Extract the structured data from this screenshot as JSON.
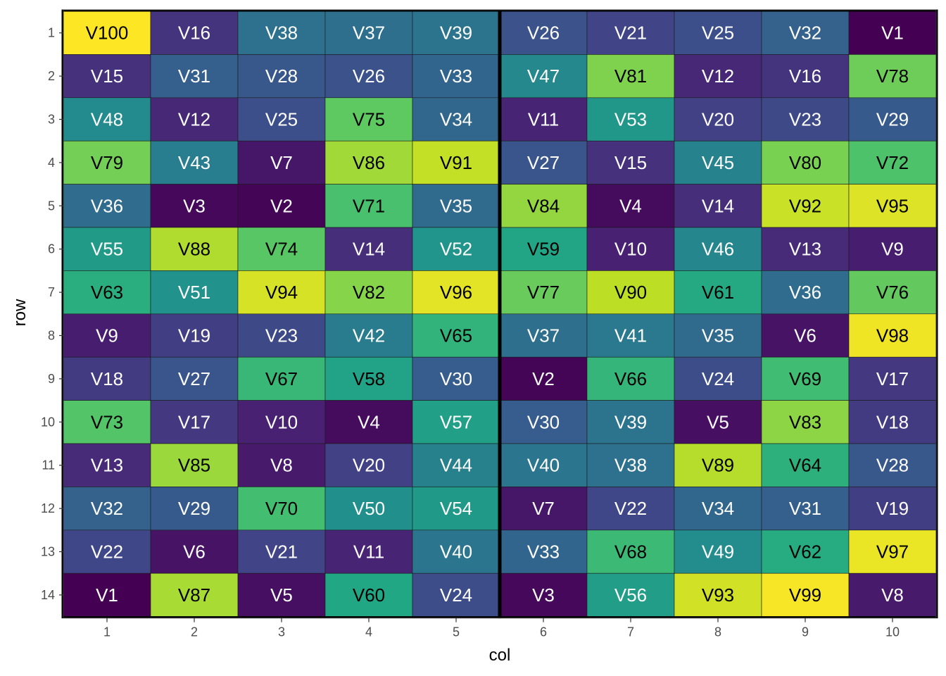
{
  "chart_data": {
    "type": "heatmap",
    "xlabel": "col",
    "ylabel": "row",
    "x_ticks": [
      "1",
      "2",
      "3",
      "4",
      "5",
      "6",
      "7",
      "8",
      "9",
      "10"
    ],
    "y_ticks": [
      "1",
      "2",
      "3",
      "4",
      "5",
      "6",
      "7",
      "8",
      "9",
      "10",
      "11",
      "12",
      "13",
      "14"
    ],
    "panels": [
      [
        1,
        5
      ],
      [
        6,
        10
      ]
    ],
    "colormap": "viridis",
    "value_range": [
      1,
      100
    ],
    "grid": false,
    "cells": [
      [
        "V100",
        "V16",
        "V38",
        "V37",
        "V39",
        "V26",
        "V21",
        "V25",
        "V32",
        "V1"
      ],
      [
        "V15",
        "V31",
        "V28",
        "V26",
        "V33",
        "V47",
        "V81",
        "V12",
        "V16",
        "V78"
      ],
      [
        "V48",
        "V12",
        "V25",
        "V75",
        "V34",
        "V11",
        "V53",
        "V20",
        "V23",
        "V29"
      ],
      [
        "V79",
        "V43",
        "V7",
        "V86",
        "V91",
        "V27",
        "V15",
        "V45",
        "V80",
        "V72"
      ],
      [
        "V36",
        "V3",
        "V2",
        "V71",
        "V35",
        "V84",
        "V4",
        "V14",
        "V92",
        "V95"
      ],
      [
        "V55",
        "V88",
        "V74",
        "V14",
        "V52",
        "V59",
        "V10",
        "V46",
        "V13",
        "V9"
      ],
      [
        "V63",
        "V51",
        "V94",
        "V82",
        "V96",
        "V77",
        "V90",
        "V61",
        "V36",
        "V76"
      ],
      [
        "V9",
        "V19",
        "V23",
        "V42",
        "V65",
        "V37",
        "V41",
        "V35",
        "V6",
        "V98"
      ],
      [
        "V18",
        "V27",
        "V67",
        "V58",
        "V30",
        "V2",
        "V66",
        "V24",
        "V69",
        "V17"
      ],
      [
        "V73",
        "V17",
        "V10",
        "V4",
        "V57",
        "V30",
        "V39",
        "V5",
        "V83",
        "V18"
      ],
      [
        "V13",
        "V85",
        "V8",
        "V20",
        "V44",
        "V40",
        "V38",
        "V89",
        "V64",
        "V28"
      ],
      [
        "V32",
        "V29",
        "V70",
        "V50",
        "V54",
        "V7",
        "V22",
        "V34",
        "V31",
        "V19"
      ],
      [
        "V22",
        "V6",
        "V21",
        "V11",
        "V40",
        "V33",
        "V68",
        "V49",
        "V62",
        "V97"
      ],
      [
        "V1",
        "V87",
        "V5",
        "V60",
        "V24",
        "V3",
        "V56",
        "V93",
        "V99",
        "V8"
      ]
    ]
  }
}
